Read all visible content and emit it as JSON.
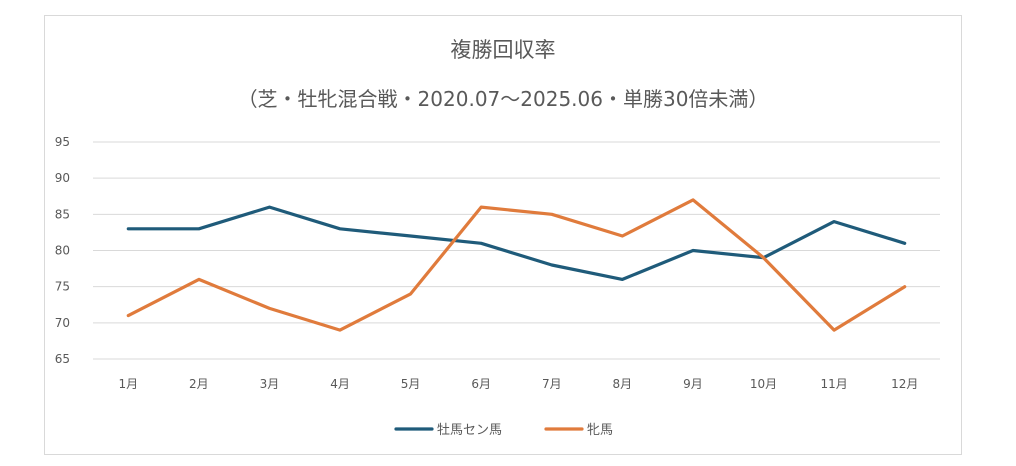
{
  "chart_data": {
    "type": "line",
    "title": "複勝回収率",
    "subtitle": "（芝・牡牝混合戦・2020.07～2025.06・単勝30倍未満）",
    "categories": [
      "1月",
      "2月",
      "3月",
      "4月",
      "5月",
      "6月",
      "7月",
      "8月",
      "9月",
      "10月",
      "11月",
      "12月"
    ],
    "ylim": [
      65,
      95
    ],
    "yticks": [
      65,
      70,
      75,
      80,
      85,
      90,
      95
    ],
    "grid": true,
    "legend": "bottom",
    "series": [
      {
        "name": "牡馬セン馬",
        "color": "#1f5b7a",
        "values": [
          83,
          83,
          86,
          83,
          82,
          81,
          78,
          76,
          80,
          79,
          84,
          81
        ]
      },
      {
        "name": "牝馬",
        "color": "#e07b3c",
        "values": [
          71,
          76,
          72,
          69,
          74,
          86,
          85,
          82,
          87,
          79,
          69,
          75
        ]
      }
    ]
  }
}
